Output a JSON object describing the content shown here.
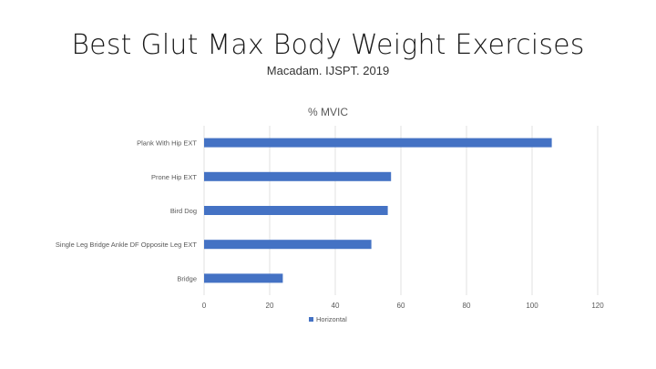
{
  "slide": {
    "title": "Best Glut Max Body Weight Exercises",
    "subtitle": "Macadam. IJSPT. 2019"
  },
  "colors": {
    "bar": "#4472C4",
    "grid": "#D9D9D9",
    "text": "#595959"
  },
  "chart_data": {
    "type": "bar",
    "orientation": "horizontal",
    "title": "% MVIC",
    "categories": [
      "Plank With Hip EXT",
      "Prone Hip EXT",
      "Bird Dog",
      "Single Leg Bridge Ankle DF Opposite Leg EXT",
      "Bridge"
    ],
    "series": [
      {
        "name": "Horizontal",
        "values": [
          106,
          57,
          56,
          51,
          24
        ]
      }
    ],
    "xlim": [
      0,
      120
    ],
    "xticks": [
      0,
      20,
      40,
      60,
      80,
      100,
      120
    ],
    "grid": true,
    "legend": "bottom"
  }
}
